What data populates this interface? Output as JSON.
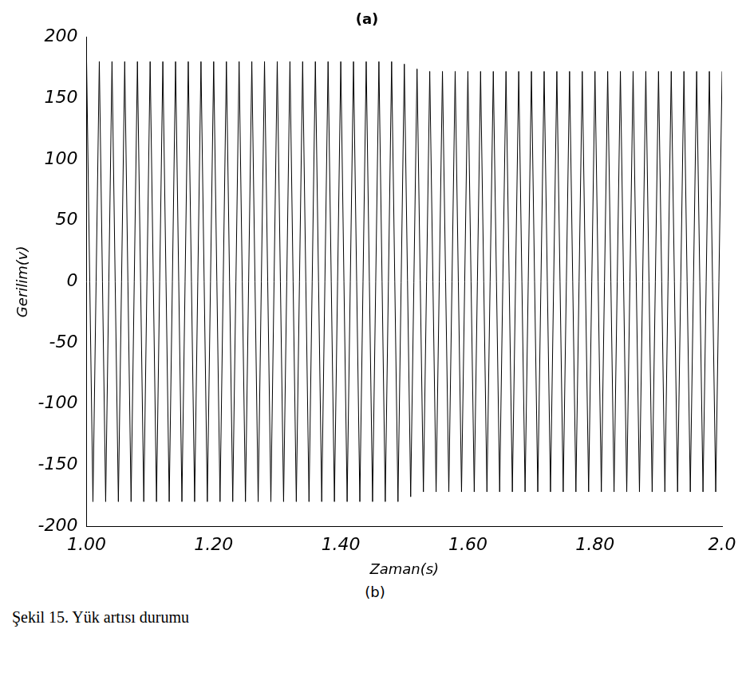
{
  "chart_data": {
    "type": "line",
    "title": "(a)",
    "subtitle": "(b)",
    "caption": "Şekil 15. Yük artısı durumu",
    "x_label": "Zaman(s)",
    "y_label": "Gerilim(v)",
    "x": [
      1,
      1.01,
      1.02,
      1.03,
      1.04,
      1.05,
      1.06,
      1.07,
      1.08,
      1.09,
      1.1,
      1.11,
      1.12,
      1.13,
      1.14,
      1.15,
      1.16,
      1.17,
      1.18,
      1.19,
      1.2,
      1.21,
      1.22,
      1.23,
      1.24,
      1.25,
      1.26,
      1.27,
      1.28,
      1.29,
      1.3,
      1.31,
      1.32,
      1.33,
      1.34,
      1.35,
      1.36,
      1.37,
      1.38,
      1.39,
      1.4,
      1.41,
      1.42,
      1.43,
      1.44,
      1.45,
      1.46,
      1.47,
      1.48,
      1.49,
      1.5,
      1.51,
      1.52,
      1.53,
      1.54,
      1.55,
      1.56,
      1.57,
      1.58,
      1.59,
      1.6,
      1.61,
      1.62,
      1.63,
      1.64,
      1.65,
      1.66,
      1.67,
      1.68,
      1.69,
      1.7,
      1.71,
      1.72,
      1.73,
      1.74,
      1.75,
      1.76,
      1.77,
      1.78,
      1.79,
      1.8,
      1.81,
      1.82,
      1.83,
      1.84,
      1.85,
      1.86,
      1.87,
      1.88,
      1.89,
      1.9,
      1.91,
      1.92,
      1.93,
      1.94,
      1.95,
      1.96,
      1.97,
      1.98,
      1.99,
      2
    ],
    "values": [
      180,
      -180,
      180,
      -180,
      180,
      -180,
      180,
      -180,
      180,
      -180,
      180,
      -180,
      180,
      -180,
      180,
      -180,
      180,
      -180,
      180,
      -180,
      180,
      -180,
      180,
      -180,
      180,
      -180,
      180,
      -180,
      180,
      -180,
      180,
      -180,
      180,
      -180,
      180,
      -180,
      180,
      -180,
      180,
      -180,
      180,
      -180,
      180,
      -180,
      180,
      -180,
      180,
      -180,
      180,
      -180,
      178,
      -176,
      174,
      -172,
      172,
      -172,
      172,
      -172,
      172,
      -172,
      172,
      -172,
      172,
      -172,
      172,
      -172,
      172,
      -172,
      172,
      -172,
      172,
      -172,
      172,
      -172,
      172,
      -172,
      172,
      -172,
      172,
      -172,
      172,
      -172,
      172,
      -172,
      172,
      -172,
      172,
      -172,
      172,
      -172,
      172,
      -172,
      172,
      -172,
      172,
      -172,
      172,
      -172,
      172,
      -172,
      172
    ],
    "color": "#000000",
    "xlim": [
      1,
      2
    ],
    "xticks": [
      {
        "value": 1,
        "label": "1.00"
      },
      {
        "value": 1.2,
        "label": "1.20"
      },
      {
        "value": 1.4,
        "label": "1.40"
      },
      {
        "value": 1.6,
        "label": "1.60"
      },
      {
        "value": 1.8,
        "label": "1.80"
      },
      {
        "value": 2,
        "label": "2.0"
      }
    ],
    "ylim": [
      -200,
      200
    ],
    "yticks": [
      -200,
      -150,
      -100,
      -50,
      0,
      50,
      100,
      150,
      200
    ],
    "grid": false
  }
}
